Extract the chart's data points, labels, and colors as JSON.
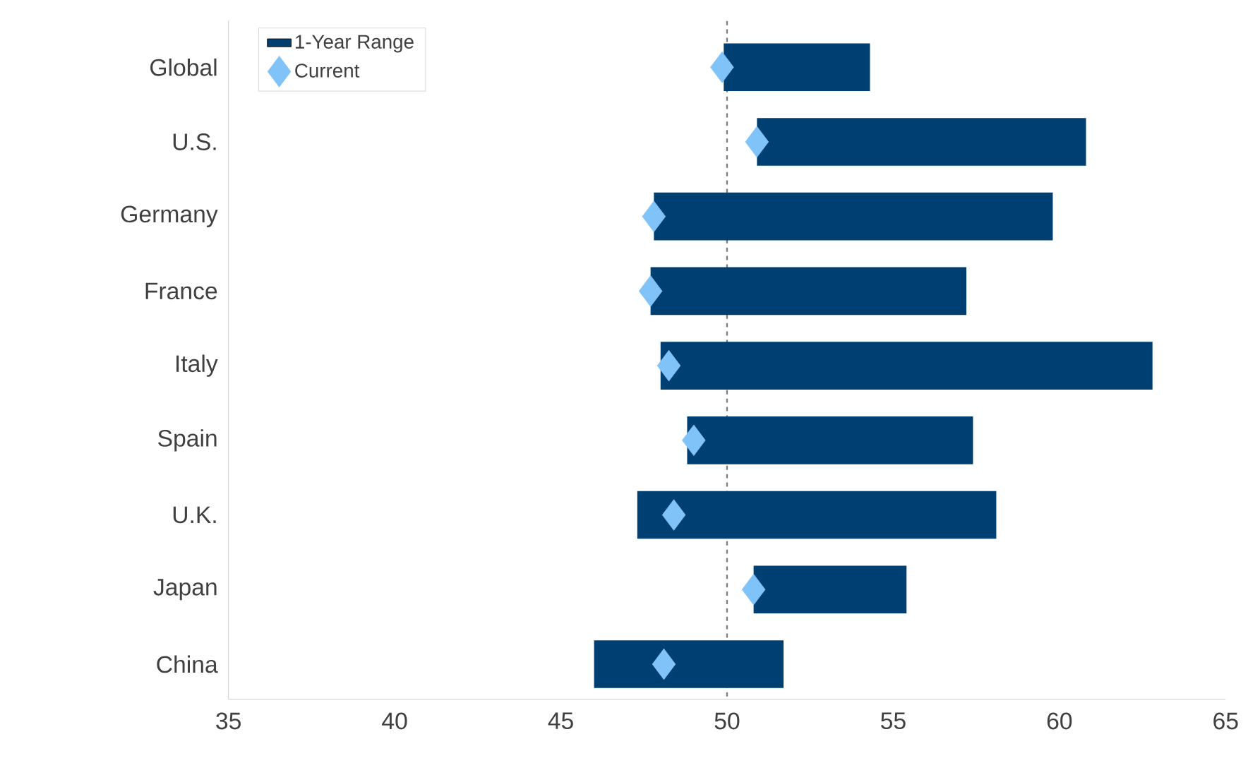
{
  "chart_data": {
    "type": "bar",
    "orientation": "horizontal",
    "categories": [
      "Global",
      "U.S.",
      "Germany",
      "France",
      "Italy",
      "Spain",
      "U.K.",
      "Japan",
      "China"
    ],
    "series": [
      {
        "name": "1-Year Range",
        "color": "#003f72",
        "base": [
          49.9,
          50.9,
          47.8,
          47.7,
          48.0,
          48.8,
          47.3,
          50.8,
          46.0
        ],
        "values": [
          4.4,
          9.9,
          12.0,
          9.5,
          14.8,
          8.6,
          10.8,
          4.6,
          5.7
        ]
      },
      {
        "name": "Current",
        "type": "scatter",
        "color": "#7fc3f9",
        "x": [
          "Global",
          "U.S.",
          "Germany",
          "France",
          "Italy",
          "Spain",
          "U.K.",
          "Japan",
          "China"
        ],
        "values": [
          49.85,
          50.9,
          47.8,
          47.7,
          48.25,
          49.0,
          48.4,
          50.8,
          48.1
        ]
      }
    ],
    "xlim": [
      35,
      65
    ],
    "xticks": [
      35,
      40,
      45,
      50,
      55,
      60,
      65
    ],
    "ref_lines": [
      {
        "axis": "x",
        "value": 50,
        "line_style": "dashed",
        "color": "#808080"
      }
    ],
    "legend": "top left",
    "marker": "diamond",
    "grid": false
  }
}
